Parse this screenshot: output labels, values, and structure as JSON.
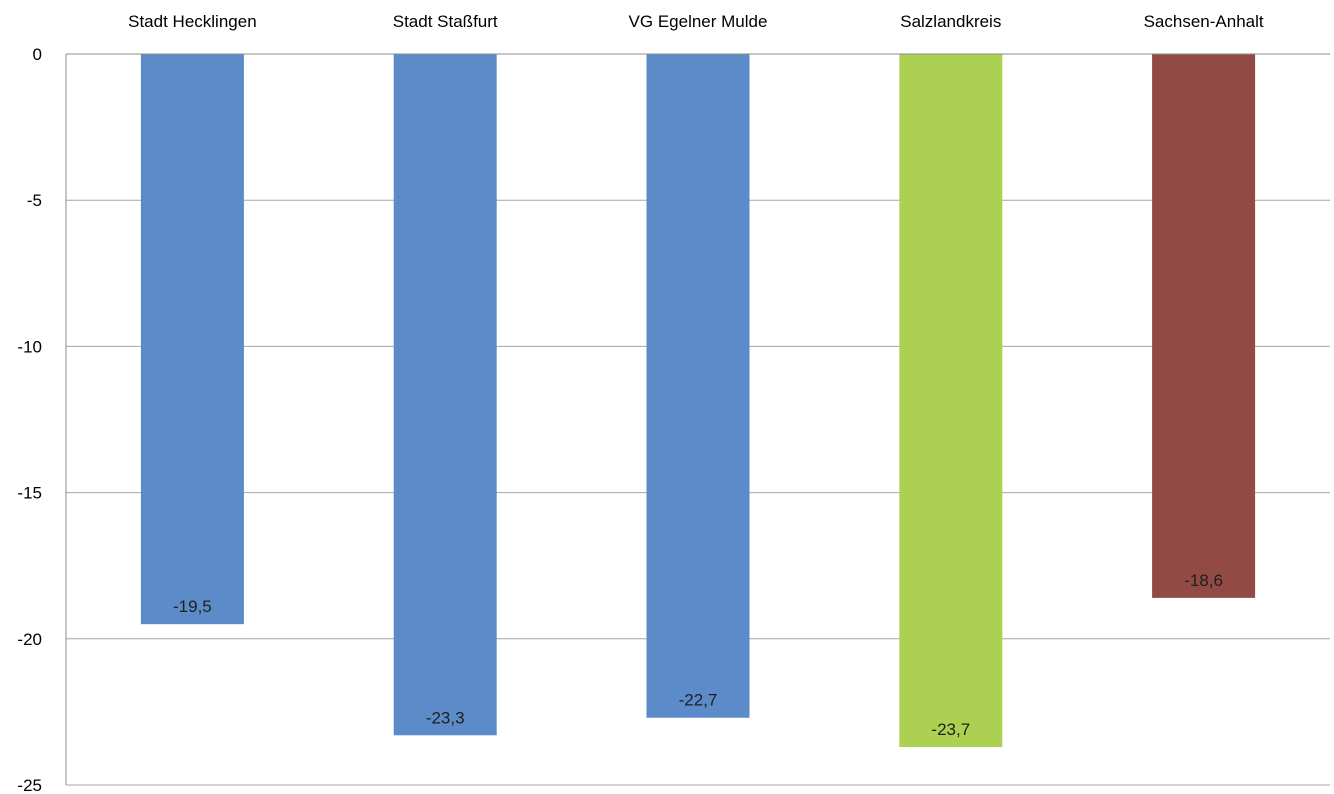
{
  "chart_data": {
    "type": "bar",
    "categories": [
      "Stadt Hecklingen",
      "Stadt Staßfurt",
      "VG Egelner Mulde",
      "Salzlandkreis",
      "Sachsen-Anhalt"
    ],
    "values": [
      -19.5,
      -23.3,
      -22.7,
      -23.7,
      -18.6
    ],
    "data_labels": [
      "-19,5",
      "-23,3",
      "-22,7",
      "-23,7",
      "-18,6"
    ],
    "bar_colors": [
      "#5b8bc8",
      "#5b8bc8",
      "#5b8bc8",
      "#acd152",
      "#924a44"
    ],
    "y_ticks": [
      0,
      -5,
      -10,
      -15,
      -20,
      -25
    ],
    "y_tick_labels": [
      "0",
      "-5",
      "-10",
      "-15",
      "-20",
      "-25"
    ],
    "ylim": [
      -25,
      0
    ],
    "x_axis_position": "top",
    "grid": true,
    "legend": "none",
    "title": "",
    "xlabel": "",
    "ylabel": ""
  }
}
